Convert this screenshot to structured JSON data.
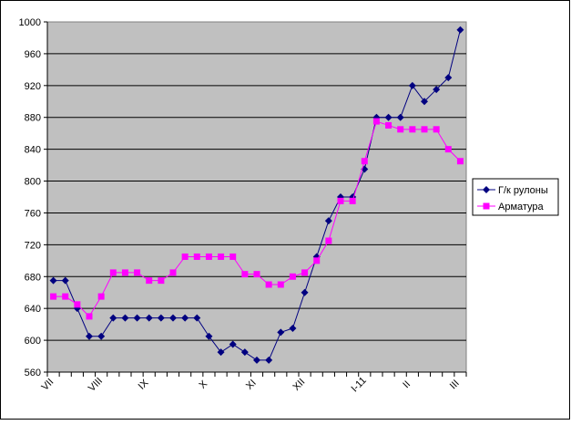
{
  "chart_data": {
    "type": "line",
    "title": "",
    "xlabel": "",
    "ylabel": "",
    "ylim": [
      560,
      1000
    ],
    "yticks": [
      560,
      600,
      640,
      680,
      720,
      760,
      800,
      840,
      880,
      920,
      960,
      1000
    ],
    "grid": true,
    "legend_placement": "right",
    "plot_background": "#c0c0c0",
    "x_tick_labels": [
      {
        "index": 0,
        "label": "VII"
      },
      {
        "index": 4,
        "label": "VIII"
      },
      {
        "index": 8,
        "label": "IX"
      },
      {
        "index": 13,
        "label": "X"
      },
      {
        "index": 17,
        "label": "XI"
      },
      {
        "index": 21,
        "label": "XII"
      },
      {
        "index": 26,
        "label": "I-11"
      },
      {
        "index": 30,
        "label": "II"
      },
      {
        "index": 34,
        "label": "III"
      }
    ],
    "series": [
      {
        "name": "Г/к рулоны",
        "color": "#000080",
        "marker": "diamond",
        "values": [
          675,
          675,
          640,
          605,
          605,
          628,
          628,
          628,
          628,
          628,
          628,
          628,
          628,
          605,
          585,
          595,
          585,
          575,
          575,
          610,
          615,
          660,
          705,
          750,
          780,
          780,
          815,
          880,
          880,
          880,
          920,
          900,
          915,
          930,
          990
        ]
      },
      {
        "name": "Арматура",
        "color": "#ff00ff",
        "marker": "square",
        "values": [
          655,
          655,
          645,
          630,
          655,
          685,
          685,
          685,
          675,
          675,
          685,
          705,
          705,
          705,
          705,
          705,
          683,
          683,
          670,
          670,
          680,
          685,
          700,
          725,
          775,
          775,
          825,
          875,
          870,
          865,
          865,
          865,
          865,
          840,
          825
        ]
      }
    ]
  }
}
